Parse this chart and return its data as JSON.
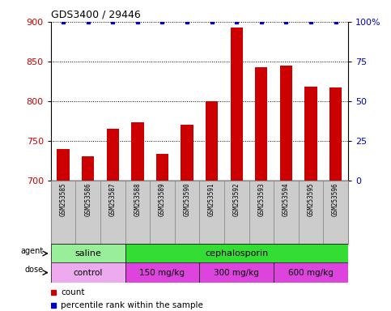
{
  "title": "GDS3400 / 29446",
  "samples": [
    "GSM253585",
    "GSM253586",
    "GSM253587",
    "GSM253588",
    "GSM253589",
    "GSM253590",
    "GSM253591",
    "GSM253592",
    "GSM253593",
    "GSM253594",
    "GSM253595",
    "GSM253596"
  ],
  "counts": [
    740,
    730,
    765,
    773,
    733,
    770,
    800,
    893,
    843,
    845,
    818,
    817
  ],
  "percentile_ranks": [
    100,
    100,
    100,
    100,
    100,
    100,
    100,
    100,
    100,
    100,
    100,
    100
  ],
  "bar_color": "#cc0000",
  "dot_color": "#0000cc",
  "ylim_left": [
    700,
    900
  ],
  "ylim_right": [
    0,
    100
  ],
  "yticks_left": [
    700,
    750,
    800,
    850,
    900
  ],
  "yticks_right": [
    0,
    25,
    50,
    75,
    100
  ],
  "yticklabels_right": [
    "0",
    "25",
    "50",
    "75",
    "100%"
  ],
  "agent_groups": [
    {
      "label": "saline",
      "start": 0,
      "end": 3,
      "color": "#99ee99"
    },
    {
      "label": "cephalosporin",
      "start": 3,
      "end": 12,
      "color": "#33dd33"
    }
  ],
  "dose_groups": [
    {
      "label": "control",
      "start": 0,
      "end": 3,
      "color": "#eeaaee"
    },
    {
      "label": "150 mg/kg",
      "start": 3,
      "end": 6,
      "color": "#dd44dd"
    },
    {
      "label": "300 mg/kg",
      "start": 6,
      "end": 9,
      "color": "#dd44dd"
    },
    {
      "label": "600 mg/kg",
      "start": 9,
      "end": 12,
      "color": "#dd44dd"
    }
  ],
  "legend_count_color": "#cc0000",
  "legend_dot_color": "#0000cc",
  "bg_color": "#ffffff",
  "sample_label_bg": "#cccccc",
  "bar_width": 0.5
}
